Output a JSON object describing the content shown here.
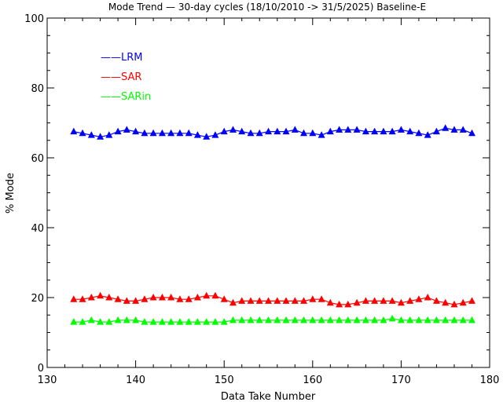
{
  "chart_data": {
    "type": "line",
    "title": "Mode Trend — 30-day cycles (18/10/2010 -> 31/5/2025) Baseline-E",
    "xlabel": "Data Take Number",
    "ylabel": "% Mode",
    "xlim": [
      130,
      180
    ],
    "ylim": [
      0,
      100
    ],
    "xticks": [
      130,
      140,
      150,
      160,
      170,
      180
    ],
    "yticks": [
      0,
      20,
      40,
      60,
      80,
      100
    ],
    "legend_position": "top-left",
    "marker": "triangle",
    "x": [
      133,
      134,
      135,
      136,
      137,
      138,
      139,
      140,
      141,
      142,
      143,
      144,
      145,
      146,
      147,
      148,
      149,
      150,
      151,
      152,
      153,
      154,
      155,
      156,
      157,
      158,
      159,
      160,
      161,
      162,
      163,
      164,
      165,
      166,
      167,
      168,
      169,
      170,
      171,
      172,
      173,
      174,
      175,
      176,
      177,
      178
    ],
    "series": [
      {
        "name": "LRM",
        "legend_label": "——LRM",
        "color": "#0000ff",
        "values": [
          67.5,
          67.0,
          66.5,
          66.0,
          66.5,
          67.5,
          68.0,
          67.5,
          67.0,
          67.0,
          67.0,
          67.0,
          67.0,
          67.0,
          66.5,
          66.0,
          66.5,
          67.5,
          68.0,
          67.5,
          67.0,
          67.0,
          67.5,
          67.5,
          67.5,
          68.0,
          67.0,
          67.0,
          66.5,
          67.5,
          68.0,
          68.0,
          68.0,
          67.5,
          67.5,
          67.5,
          67.5,
          68.0,
          67.5,
          67.0,
          66.5,
          67.5,
          68.5,
          68.0,
          68.0,
          67.0
        ]
      },
      {
        "name": "SAR",
        "legend_label": "——SAR",
        "color": "#ff0000",
        "values": [
          19.5,
          19.5,
          20.0,
          20.5,
          20.0,
          19.5,
          19.0,
          19.0,
          19.5,
          20.0,
          20.0,
          20.0,
          19.5,
          19.5,
          20.0,
          20.5,
          20.5,
          19.5,
          18.5,
          19.0,
          19.0,
          19.0,
          19.0,
          19.0,
          19.0,
          19.0,
          19.0,
          19.5,
          19.5,
          18.5,
          18.0,
          18.0,
          18.5,
          19.0,
          19.0,
          19.0,
          19.0,
          18.5,
          19.0,
          19.5,
          20.0,
          19.0,
          18.5,
          18.0,
          18.5,
          19.0
        ]
      },
      {
        "name": "SARin",
        "legend_label": "——SARin",
        "color": "#00ff00",
        "values": [
          13.0,
          13.0,
          13.5,
          13.0,
          13.0,
          13.5,
          13.5,
          13.5,
          13.0,
          13.0,
          13.0,
          13.0,
          13.0,
          13.0,
          13.0,
          13.0,
          13.0,
          13.0,
          13.5,
          13.5,
          13.5,
          13.5,
          13.5,
          13.5,
          13.5,
          13.5,
          13.5,
          13.5,
          13.5,
          13.5,
          13.5,
          13.5,
          13.5,
          13.5,
          13.5,
          13.5,
          14.0,
          13.5,
          13.5,
          13.5,
          13.5,
          13.5,
          13.5,
          13.5,
          13.5,
          13.5
        ]
      }
    ]
  }
}
